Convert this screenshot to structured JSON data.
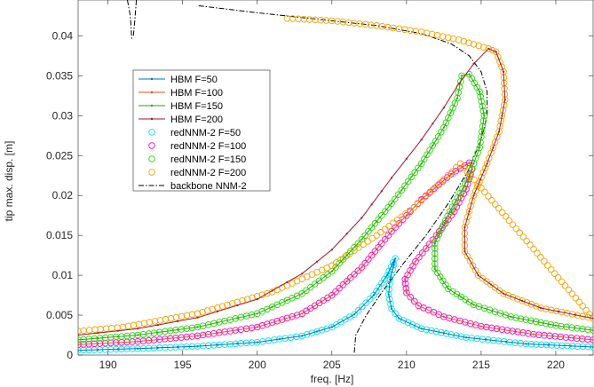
{
  "chart_data": {
    "type": "line",
    "title": "",
    "xlabel": "freq. [Hz]",
    "ylabel": "tip max. disp. [m]",
    "xlim": [
      188,
      222.5
    ],
    "ylim": [
      0,
      0.0445
    ],
    "xticks": [
      190,
      195,
      200,
      205,
      210,
      215,
      220
    ],
    "yticks": [
      0,
      0.005,
      0.01,
      0.015,
      0.02,
      0.025,
      0.03,
      0.035,
      0.04
    ],
    "ytick_labels": [
      "0",
      "0.005",
      "0.01",
      "0.015",
      "0.02",
      "0.025",
      "0.03",
      "0.035",
      "0.04"
    ],
    "grid": false,
    "legend_position": "upper-left",
    "series": [
      {
        "name": "HBM F=50",
        "kind": "hbm",
        "color": "#0072bd",
        "points": [
          [
            188,
            0.0006
          ],
          [
            192,
            0.0008
          ],
          [
            196,
            0.0011
          ],
          [
            200,
            0.0016
          ],
          [
            203,
            0.0024
          ],
          [
            205,
            0.0035
          ],
          [
            206.5,
            0.0051
          ],
          [
            207.8,
            0.0075
          ],
          [
            208.7,
            0.01
          ],
          [
            209.1,
            0.0116
          ],
          [
            209.25,
            0.0121
          ],
          [
            209.15,
            0.0113
          ],
          [
            208.9,
            0.0095
          ],
          [
            208.8,
            0.0076
          ],
          [
            209.0,
            0.0058
          ],
          [
            209.5,
            0.0046
          ],
          [
            211,
            0.0033
          ],
          [
            214,
            0.0022
          ],
          [
            218,
            0.0014
          ],
          [
            222.5,
            0.001
          ]
        ]
      },
      {
        "name": "HBM F=100",
        "kind": "hbm",
        "color": "#d95319",
        "points": [
          [
            188,
            0.0013
          ],
          [
            192,
            0.0017
          ],
          [
            196,
            0.0024
          ],
          [
            200,
            0.0035
          ],
          [
            203,
            0.0052
          ],
          [
            205,
            0.0075
          ],
          [
            207,
            0.011
          ],
          [
            209,
            0.0155
          ],
          [
            211,
            0.0195
          ],
          [
            213,
            0.0227
          ],
          [
            214.2,
            0.0241
          ],
          [
            214.4,
            0.0233
          ],
          [
            214.0,
            0.0208
          ],
          [
            213.2,
            0.018
          ],
          [
            212,
            0.015
          ],
          [
            210.6,
            0.0117
          ],
          [
            209.9,
            0.0095
          ],
          [
            210.0,
            0.0078
          ],
          [
            210.8,
            0.0062
          ],
          [
            212.5,
            0.0048
          ],
          [
            215,
            0.0036
          ],
          [
            218.5,
            0.0026
          ],
          [
            222.5,
            0.0019
          ]
        ]
      },
      {
        "name": "HBM F=150",
        "kind": "hbm",
        "color": "#3a9a1a",
        "points": [
          [
            188,
            0.0019
          ],
          [
            192,
            0.0025
          ],
          [
            196,
            0.0035
          ],
          [
            200,
            0.0052
          ],
          [
            203,
            0.0077
          ],
          [
            205,
            0.0105
          ],
          [
            207,
            0.0145
          ],
          [
            209,
            0.019
          ],
          [
            211,
            0.024
          ],
          [
            212.5,
            0.0285
          ],
          [
            213.4,
            0.0322
          ],
          [
            213.7,
            0.035
          ],
          [
            214.2,
            0.0352
          ],
          [
            214.9,
            0.033
          ],
          [
            215.2,
            0.03
          ],
          [
            214.9,
            0.026
          ],
          [
            214.1,
            0.022
          ],
          [
            212.9,
            0.018
          ],
          [
            211.9,
            0.014
          ],
          [
            211.9,
            0.0108
          ],
          [
            212.8,
            0.0083
          ],
          [
            214.5,
            0.0063
          ],
          [
            217,
            0.0048
          ],
          [
            220,
            0.0037
          ],
          [
            222.5,
            0.0031
          ]
        ]
      },
      {
        "name": "HBM F=200",
        "kind": "hbm",
        "color": "#a2142f",
        "points": [
          [
            188,
            0.0025
          ],
          [
            192,
            0.0033
          ],
          [
            196,
            0.0047
          ],
          [
            200,
            0.007
          ],
          [
            203,
            0.0102
          ],
          [
            205,
            0.0132
          ],
          [
            207,
            0.0172
          ],
          [
            209,
            0.0222
          ],
          [
            211,
            0.027
          ],
          [
            212.5,
            0.031
          ],
          [
            213.5,
            0.034
          ],
          [
            214.5,
            0.0365
          ],
          [
            215.5,
            0.0384
          ],
          [
            216.0,
            0.038
          ],
          [
            216.5,
            0.0355
          ],
          [
            216.6,
            0.032
          ],
          [
            216.2,
            0.028
          ],
          [
            215.4,
            0.024
          ],
          [
            214.5,
            0.02
          ],
          [
            213.9,
            0.016
          ],
          [
            213.9,
            0.013
          ],
          [
            214.8,
            0.01
          ],
          [
            216.5,
            0.0077
          ],
          [
            219,
            0.0059
          ],
          [
            222.5,
            0.0046
          ]
        ]
      },
      {
        "name": "redNNM-2 F=50",
        "kind": "rom",
        "color": "#00e5ee",
        "points": [
          [
            188,
            0.0006
          ],
          [
            192,
            0.0008
          ],
          [
            196,
            0.0011
          ],
          [
            200,
            0.0016
          ],
          [
            203,
            0.0024
          ],
          [
            205,
            0.0035
          ],
          [
            206.5,
            0.0051
          ],
          [
            207.8,
            0.0075
          ],
          [
            208.7,
            0.01
          ],
          [
            209.1,
            0.0116
          ],
          [
            209.25,
            0.0121
          ],
          [
            209.15,
            0.0113
          ],
          [
            208.9,
            0.0095
          ],
          [
            208.8,
            0.0076
          ],
          [
            209.0,
            0.0058
          ],
          [
            209.5,
            0.0046
          ],
          [
            211,
            0.0033
          ],
          [
            214,
            0.0022
          ],
          [
            218,
            0.0014
          ],
          [
            222.5,
            0.001
          ]
        ]
      },
      {
        "name": "redNNM-2 F=100",
        "kind": "rom",
        "color": "#ff00d8",
        "points": [
          [
            188,
            0.0013
          ],
          [
            192,
            0.0017
          ],
          [
            196,
            0.0024
          ],
          [
            200,
            0.0035
          ],
          [
            203,
            0.0052
          ],
          [
            205,
            0.0075
          ],
          [
            207,
            0.011
          ],
          [
            209,
            0.0155
          ],
          [
            211,
            0.0195
          ],
          [
            213,
            0.0227
          ],
          [
            214.2,
            0.0241
          ],
          [
            214.4,
            0.0233
          ],
          [
            214.0,
            0.0208
          ],
          [
            213.2,
            0.018
          ],
          [
            212,
            0.015
          ],
          [
            210.6,
            0.0117
          ],
          [
            209.9,
            0.0095
          ],
          [
            210.0,
            0.0078
          ],
          [
            210.8,
            0.0062
          ],
          [
            212.5,
            0.0048
          ],
          [
            215,
            0.0036
          ],
          [
            218.5,
            0.0026
          ],
          [
            222.5,
            0.0019
          ]
        ]
      },
      {
        "name": "redNNM-2 F=150",
        "kind": "rom",
        "color": "#22dd00",
        "points": [
          [
            188,
            0.0019
          ],
          [
            192,
            0.0025
          ],
          [
            196,
            0.0035
          ],
          [
            200,
            0.0052
          ],
          [
            203,
            0.0077
          ],
          [
            205,
            0.0105
          ],
          [
            207,
            0.0145
          ],
          [
            209,
            0.019
          ],
          [
            211,
            0.024
          ],
          [
            212.5,
            0.0285
          ],
          [
            213.4,
            0.0322
          ],
          [
            213.7,
            0.035
          ],
          [
            214.2,
            0.0352
          ],
          [
            214.9,
            0.033
          ],
          [
            215.2,
            0.03
          ],
          [
            214.9,
            0.026
          ],
          [
            214.1,
            0.022
          ],
          [
            212.9,
            0.018
          ],
          [
            211.9,
            0.014
          ],
          [
            211.9,
            0.0108
          ],
          [
            212.8,
            0.0083
          ],
          [
            214.5,
            0.0063
          ],
          [
            217,
            0.0048
          ],
          [
            220,
            0.0037
          ],
          [
            222.5,
            0.0031
          ]
        ]
      },
      {
        "name": "redNNM-2 F=200",
        "kind": "rom",
        "color": "#f5a100",
        "points": [
          [
            202,
            0.0422
          ],
          [
            205,
            0.0419
          ],
          [
            208,
            0.0413
          ],
          [
            211,
            0.0405
          ],
          [
            213.5,
            0.0395
          ],
          [
            215.5,
            0.0384
          ],
          [
            216.0,
            0.038
          ],
          [
            216.5,
            0.0355
          ],
          [
            216.6,
            0.032
          ],
          [
            216.2,
            0.028
          ],
          [
            215.4,
            0.024
          ],
          [
            214.5,
            0.02
          ],
          [
            213.9,
            0.016
          ],
          [
            213.9,
            0.013
          ],
          [
            214.8,
            0.01
          ],
          [
            216.5,
            0.0077
          ],
          [
            219,
            0.0059
          ],
          [
            222.5,
            0.0046
          ],
          [
            213.6,
            0.024
          ],
          [
            212.5,
            0.022
          ],
          [
            210.5,
            0.0185
          ],
          [
            208,
            0.015
          ],
          [
            205,
            0.0112
          ],
          [
            201,
            0.0079
          ],
          [
            196,
            0.0052
          ],
          [
            191,
            0.0035
          ],
          [
            188,
            0.003
          ]
        ]
      },
      {
        "name": "backbone NNM-2",
        "kind": "backbone",
        "color": "#000000",
        "points": [
          [
            206.5,
            0.0003
          ],
          [
            206.6,
            0.0025
          ],
          [
            207.3,
            0.005
          ],
          [
            208.4,
            0.008
          ],
          [
            209.8,
            0.0115
          ],
          [
            211.3,
            0.015
          ],
          [
            212.8,
            0.019
          ],
          [
            214.1,
            0.023
          ],
          [
            215.0,
            0.027
          ],
          [
            215.4,
            0.03
          ],
          [
            215.4,
            0.033
          ],
          [
            215.0,
            0.0355
          ],
          [
            214.2,
            0.0375
          ],
          [
            213.0,
            0.039
          ],
          [
            211.0,
            0.0403
          ],
          [
            208.0,
            0.0413
          ],
          [
            204.0,
            0.0421
          ],
          [
            200.0,
            0.0429
          ],
          [
            196.0,
            0.0438
          ]
        ]
      }
    ],
    "backbone_extra": [
      [
        [
          191.3,
          0.0445
        ],
        [
          191.5,
          0.0425
        ],
        [
          191.6,
          0.0395
        ]
      ],
      [
        [
          191.9,
          0.0445
        ],
        [
          191.8,
          0.042
        ],
        [
          191.7,
          0.04
        ]
      ]
    ]
  }
}
